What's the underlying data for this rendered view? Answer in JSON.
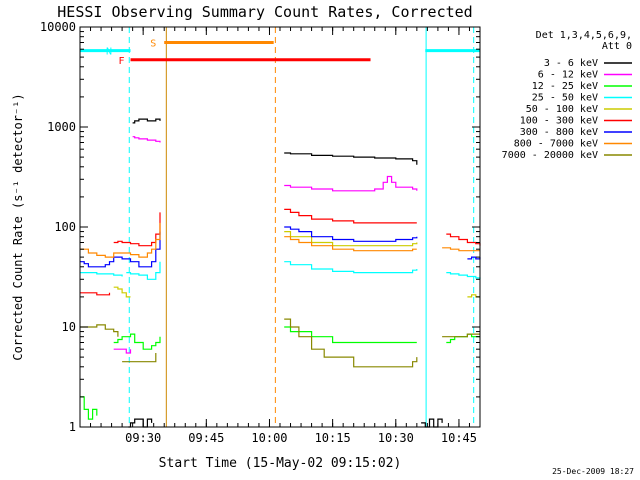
{
  "chart_data": {
    "type": "line",
    "title": "HESSI Observing Summary Count Rates, Corrected",
    "xlabel": "Start Time (15-May-02 09:15:02)",
    "ylabel": "Corrected Count Rate (s⁻¹ detector⁻¹)",
    "yscale": "log",
    "ylim": [
      1,
      10000
    ],
    "xlim_minutes_after_09_15": [
      0,
      95
    ],
    "x_ticks": [
      {
        "label": "09:30",
        "value": 15
      },
      {
        "label": "09:45",
        "value": 30
      },
      {
        "label": "10:00",
        "value": 45
      },
      {
        "label": "10:15",
        "value": 60
      },
      {
        "label": "10:30",
        "value": 75
      },
      {
        "label": "10:45",
        "value": 90
      }
    ],
    "y_ticks": [
      {
        "label": "1",
        "value": 1
      },
      {
        "label": "10",
        "value": 10
      },
      {
        "label": "100",
        "value": 100
      },
      {
        "label": "1000",
        "value": 1000
      },
      {
        "label": "10000",
        "value": 10000
      }
    ],
    "legend_header": [
      "Det 1,3,4,5,6,9,",
      "Att 0"
    ],
    "legend_position": "right",
    "series": [
      {
        "name": "3 - 6 keV",
        "color": "#000000",
        "segments": [
          {
            "x": [
              11.5,
              12,
              13,
              14,
              15,
              16,
              17
            ],
            "y": [
              1,
              1.1,
              1.2,
              1.2,
              1.0,
              1.2,
              1.1
            ]
          },
          {
            "x": [
              12.5,
              13,
              14,
              16,
              18,
              19
            ],
            "y": [
              1100,
              1150,
              1200,
              1150,
              1200,
              1150
            ]
          },
          {
            "x": [
              48.5,
              50,
              55,
              60,
              65,
              70,
              75,
              79,
              80
            ],
            "y": [
              550,
              540,
              520,
              510,
              500,
              490,
              480,
              460,
              420
            ]
          },
          {
            "x": [
              81,
              82,
              83,
              84,
              85,
              86
            ],
            "y": [
              1.1,
              1.0,
              1.2,
              1.0,
              1.2,
              1.1
            ]
          }
        ]
      },
      {
        "name": "6 - 12 keV",
        "color": "#ff00ff",
        "segments": [
          {
            "x": [
              8,
              9,
              10,
              11,
              12
            ],
            "y": [
              6,
              6,
              6,
              5.5,
              6
            ]
          },
          {
            "x": [
              12.5,
              13,
              14,
              16,
              18,
              19
            ],
            "y": [
              800,
              780,
              760,
              740,
              720,
              700
            ]
          },
          {
            "x": [
              48.5,
              50,
              55,
              60,
              65,
              70,
              72,
              73,
              74,
              75,
              79,
              80
            ],
            "y": [
              260,
              250,
              240,
              230,
              230,
              240,
              280,
              320,
              280,
              250,
              240,
              230
            ]
          }
        ]
      },
      {
        "name": "12 - 25 keV",
        "color": "#00ff00",
        "segments": [
          {
            "x": [
              0,
              1,
              2,
              3,
              4
            ],
            "y": [
              2,
              1.5,
              1.2,
              1.5,
              1.3
            ]
          },
          {
            "x": [
              8,
              9,
              10,
              11,
              12,
              13,
              15,
              17,
              18,
              19
            ],
            "y": [
              7,
              7.5,
              8,
              8,
              8.5,
              7,
              6,
              6.5,
              7,
              8
            ]
          },
          {
            "x": [
              48.5,
              50,
              55,
              60,
              65,
              70,
              75,
              79,
              80
            ],
            "y": [
              10,
              9,
              8,
              7,
              7,
              7,
              7,
              7,
              7
            ]
          },
          {
            "x": [
              87,
              88,
              89,
              90,
              91,
              92,
              93,
              94,
              95
            ],
            "y": [
              7,
              7.5,
              8,
              8,
              8,
              8.5,
              8,
              8,
              8
            ]
          }
        ]
      },
      {
        "name": "25 - 50 keV",
        "color": "#00ffff",
        "segments": [
          {
            "x": [
              0,
              2,
              4,
              6,
              8,
              10
            ],
            "y": [
              35,
              35,
              34,
              34,
              33,
              32
            ]
          },
          {
            "x": [
              11,
              12,
              14,
              16,
              17,
              18,
              19
            ],
            "y": [
              35,
              34,
              33,
              30,
              30,
              35,
              45
            ]
          },
          {
            "x": [
              48.5,
              50,
              55,
              60,
              65,
              70,
              75,
              79,
              80
            ],
            "y": [
              45,
              42,
              38,
              36,
              35,
              35,
              35,
              37,
              38
            ]
          },
          {
            "x": [
              87,
              88,
              90,
              92,
              94,
              95
            ],
            "y": [
              35,
              34,
              33,
              32,
              31,
              30
            ]
          }
        ]
      },
      {
        "name": "50 - 100 keV",
        "color": "#cccc00",
        "segments": [
          {
            "x": [
              8,
              9,
              10,
              11,
              12
            ],
            "y": [
              25,
              24,
              22,
              20,
              20
            ]
          },
          {
            "x": [
              48.5,
              50,
              55,
              60,
              65,
              70,
              75,
              79,
              80
            ],
            "y": [
              90,
              80,
              70,
              65,
              65,
              65,
              65,
              68,
              70
            ]
          },
          {
            "x": [
              92,
              93,
              94,
              95
            ],
            "y": [
              20,
              21,
              20,
              20
            ]
          }
        ]
      },
      {
        "name": "100 - 300 keV",
        "color": "#ff0000",
        "segments": [
          {
            "x": [
              0,
              2,
              4,
              6,
              7
            ],
            "y": [
              22,
              22,
              21,
              21,
              22
            ]
          },
          {
            "x": [
              8,
              9,
              10,
              12,
              14,
              16,
              17,
              18,
              19
            ],
            "y": [
              70,
              72,
              70,
              68,
              65,
              65,
              70,
              85,
              140
            ]
          },
          {
            "x": [
              48.5,
              50,
              52,
              55,
              60,
              65,
              70,
              75,
              79,
              80
            ],
            "y": [
              150,
              140,
              130,
              120,
              115,
              110,
              110,
              110,
              110,
              110
            ]
          },
          {
            "x": [
              87,
              88,
              90,
              92,
              94,
              95
            ],
            "y": [
              85,
              80,
              75,
              70,
              68,
              65
            ]
          }
        ]
      },
      {
        "name": "300 - 800 keV",
        "color": "#0000ff",
        "segments": [
          {
            "x": [
              0,
              1,
              2,
              4,
              6,
              7,
              8,
              10,
              12,
              14,
              16,
              17,
              18,
              19
            ],
            "y": [
              45,
              43,
              40,
              40,
              42,
              45,
              50,
              48,
              45,
              40,
              40,
              45,
              60,
              90
            ]
          },
          {
            "x": [
              48.5,
              50,
              52,
              55,
              60,
              65,
              70,
              75,
              79,
              80
            ],
            "y": [
              100,
              95,
              90,
              80,
              75,
              72,
              72,
              75,
              78,
              80
            ]
          },
          {
            "x": [
              92,
              93,
              94,
              95
            ],
            "y": [
              48,
              50,
              48,
              50
            ]
          }
        ]
      },
      {
        "name": "800 - 7000 keV",
        "color": "#ff8800",
        "segments": [
          {
            "x": [
              0,
              2,
              4,
              6,
              8,
              10,
              12,
              14,
              16,
              17,
              18,
              19
            ],
            "y": [
              60,
              55,
              52,
              50,
              55,
              55,
              53,
              50,
              55,
              60,
              75,
              110
            ]
          },
          {
            "x": [
              48.5,
              50,
              52,
              55,
              60,
              65,
              70,
              75,
              79,
              80
            ],
            "y": [
              80,
              75,
              70,
              65,
              60,
              58,
              58,
              58,
              60,
              60
            ]
          },
          {
            "x": [
              86,
              88,
              90,
              92,
              94,
              95
            ],
            "y": [
              62,
              60,
              58,
              58,
              58,
              58
            ]
          }
        ]
      },
      {
        "name": "7000 - 20000 keV",
        "color": "#888800",
        "segments": [
          {
            "x": [
              0,
              2,
              4,
              6,
              8,
              9
            ],
            "y": [
              10,
              10,
              10.5,
              9.5,
              9,
              8
            ]
          },
          {
            "x": [
              10,
              11,
              12,
              14,
              16,
              17,
              18
            ],
            "y": [
              4.5,
              4.5,
              4.5,
              4.5,
              4.5,
              4.5,
              5.5
            ]
          },
          {
            "x": [
              48.5,
              50,
              52,
              55,
              58,
              60,
              65,
              70,
              75,
              79,
              80
            ],
            "y": [
              12,
              10,
              8,
              6,
              5,
              5,
              4,
              4,
              4,
              4.5,
              5
            ]
          },
          {
            "x": [
              86,
              88,
              90,
              92,
              94,
              95
            ],
            "y": [
              8,
              8,
              8,
              8.5,
              8.5,
              8.5
            ]
          }
        ]
      }
    ],
    "flag_bars": [
      {
        "label": "S",
        "x": [
          20,
          46
        ],
        "y": 7000,
        "color": "#ff8800"
      },
      {
        "label": "N",
        "x": [
          0,
          12
        ],
        "y": 5800,
        "color": "#00ffff",
        "extra_segment_x": [
          82,
          95
        ]
      },
      {
        "label": "F",
        "x": [
          12,
          69
        ],
        "y": 4700,
        "color": "#ff0000"
      }
    ],
    "vertical_lines": [
      {
        "x": 0,
        "color": "#00ffff",
        "style": "solid"
      },
      {
        "x": 11.7,
        "color": "#00ffff",
        "style": "dashed"
      },
      {
        "x": 20.5,
        "color": "#cc8800",
        "style": "solid"
      },
      {
        "x": 46.4,
        "color": "#ff8800",
        "style": "dashed"
      },
      {
        "x": 82.2,
        "color": "#00ffff",
        "style": "solid"
      },
      {
        "x": 93.5,
        "color": "#00ffff",
        "style": "dashed"
      }
    ],
    "timestamp": "25-Dec-2009 18:27"
  }
}
